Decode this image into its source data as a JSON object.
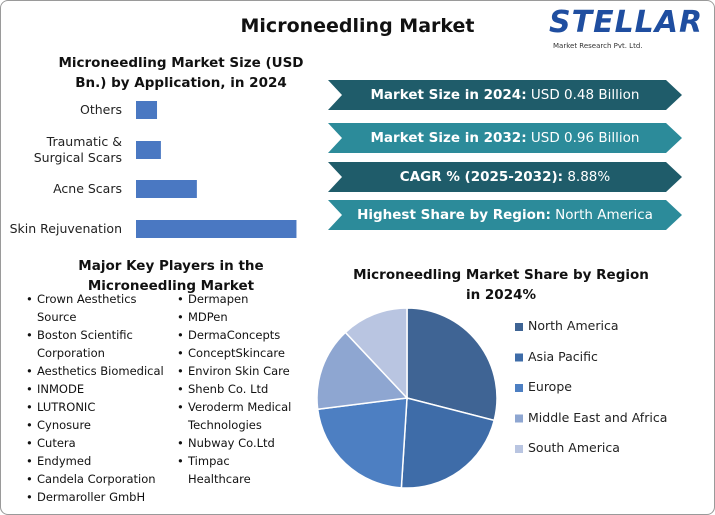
{
  "title": "Microneedling Market",
  "logo": {
    "name": "STELLAR",
    "tagline": "Market Research Pvt. Ltd."
  },
  "chart_data": [
    {
      "type": "bar",
      "orientation": "horizontal",
      "title": "Microneedling Market Size (USD Bn.) by Application, in 2024",
      "categories": [
        "Others",
        "Traumatic & Surgical Scars",
        "Acne Scars",
        "Skin Rejuvenation"
      ],
      "values": [
        0.038,
        0.045,
        0.11,
        0.29
      ],
      "color": "#4a78c2",
      "xlim": [
        0,
        0.3
      ]
    },
    {
      "type": "pie",
      "title": "Microneedling Market Share by Region in 2024%",
      "categories": [
        "North America",
        "Asia Pacific",
        "Europe",
        "Middle East and Africa",
        "South America"
      ],
      "values": [
        29,
        22,
        22,
        15,
        12
      ],
      "colors": [
        "#3f6494",
        "#3e6ca8",
        "#4d7fc2",
        "#8ea6d1",
        "#b9c5e1"
      ],
      "legend": "right"
    }
  ],
  "highlights": [
    {
      "label": "Market Size in 2024:",
      "value": "USD 0.48 Billion",
      "color": "#1f5c6a"
    },
    {
      "label": "Market Size in 2032:",
      "value": "USD 0.96 Billion",
      "color": "#2c8b9a"
    },
    {
      "label": "CAGR % (2025-2032):",
      "value": "8.88%",
      "color": "#1f5c6a"
    },
    {
      "label": "Highest Share by Region:",
      "value": "North America",
      "color": "#2c8b9a"
    }
  ],
  "key_players": {
    "title": "Major Key Players in the Microneedling Market",
    "columns": [
      [
        "Crown Aesthetics Source",
        "Boston Scientific Corporation",
        "Aesthetics Biomedical",
        "INMODE",
        "LUTRONIC",
        "Cynosure",
        "Cutera",
        "Endymed",
        "Candela Corporation",
        "Dermaroller GmbH"
      ],
      [
        "Dermapen",
        "MDPen",
        "DermaConcepts",
        "ConceptSkincare",
        "Environ Skin Care",
        "Shenb Co. Ltd",
        "Veroderm Medical Technologies",
        "Nubway Co.Ltd",
        "Timpac Healthcare"
      ]
    ]
  }
}
